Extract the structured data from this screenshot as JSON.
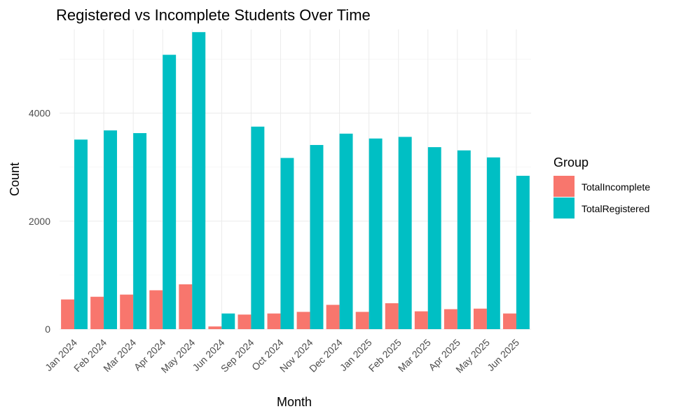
{
  "chart_data": {
    "type": "bar",
    "title": "Registered vs Incomplete Students Over Time",
    "xlabel": "Month",
    "ylabel": "Count",
    "categories": [
      "Jan 2024",
      "Feb 2024",
      "Mar 2024",
      "Apr 2024",
      "May 2024",
      "Jun 2024",
      "Sep 2024",
      "Oct 2024",
      "Nov 2024",
      "Dec 2024",
      "Jan 2025",
      "Feb 2025",
      "Mar 2025",
      "Apr 2025",
      "May 2025",
      "Jun 2025"
    ],
    "series": [
      {
        "name": "TotalIncomplete",
        "color": "#F8766D",
        "values": [
          550,
          600,
          640,
          720,
          830,
          50,
          270,
          290,
          320,
          450,
          320,
          480,
          330,
          370,
          380,
          290
        ]
      },
      {
        "name": "TotalRegistered",
        "color": "#00BFC4",
        "values": [
          3510,
          3680,
          3630,
          5080,
          5500,
          290,
          3750,
          3170,
          3410,
          3620,
          3530,
          3560,
          3370,
          3310,
          3180,
          2840
        ]
      }
    ],
    "yticks": [
      0,
      2000,
      4000
    ],
    "ylim": [
      0,
      5550
    ],
    "grid": true,
    "legend": {
      "title": "Group",
      "position": "right"
    }
  }
}
